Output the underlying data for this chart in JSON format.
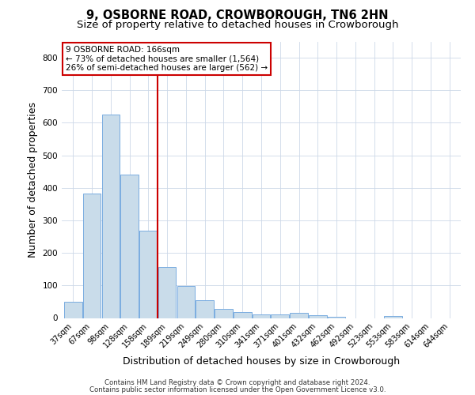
{
  "title": "9, OSBORNE ROAD, CROWBOROUGH, TN6 2HN",
  "subtitle": "Size of property relative to detached houses in Crowborough",
  "xlabel": "Distribution of detached houses by size in Crowborough",
  "ylabel": "Number of detached properties",
  "categories": [
    "37sqm",
    "67sqm",
    "98sqm",
    "128sqm",
    "158sqm",
    "189sqm",
    "219sqm",
    "249sqm",
    "280sqm",
    "310sqm",
    "341sqm",
    "371sqm",
    "401sqm",
    "432sqm",
    "462sqm",
    "492sqm",
    "523sqm",
    "553sqm",
    "583sqm",
    "614sqm",
    "644sqm"
  ],
  "values": [
    50,
    383,
    625,
    440,
    268,
    157,
    99,
    54,
    29,
    18,
    11,
    12,
    15,
    8,
    4,
    0,
    0,
    7,
    0,
    0,
    0
  ],
  "bar_color": "#c9dcea",
  "bar_edge_color": "#7aace0",
  "vline_x_index": 4.5,
  "vline_color": "#cc0000",
  "annotation_line1": "9 OSBORNE ROAD: 166sqm",
  "annotation_line2": "← 73% of detached houses are smaller (1,564)",
  "annotation_line3": "26% of semi-detached houses are larger (562) →",
  "annotation_box_color": "#ffffff",
  "annotation_box_edge": "#cc0000",
  "ylim": [
    0,
    850
  ],
  "yticks": [
    0,
    100,
    200,
    300,
    400,
    500,
    600,
    700,
    800
  ],
  "footer_line1": "Contains HM Land Registry data © Crown copyright and database right 2024.",
  "footer_line2": "Contains public sector information licensed under the Open Government Licence v3.0.",
  "background_color": "#ffffff",
  "grid_color": "#ccd8e8",
  "title_fontsize": 10.5,
  "subtitle_fontsize": 9.5,
  "axis_label_fontsize": 9,
  "tick_fontsize": 7,
  "annotation_fontsize": 7.5,
  "footer_fontsize": 6.2
}
